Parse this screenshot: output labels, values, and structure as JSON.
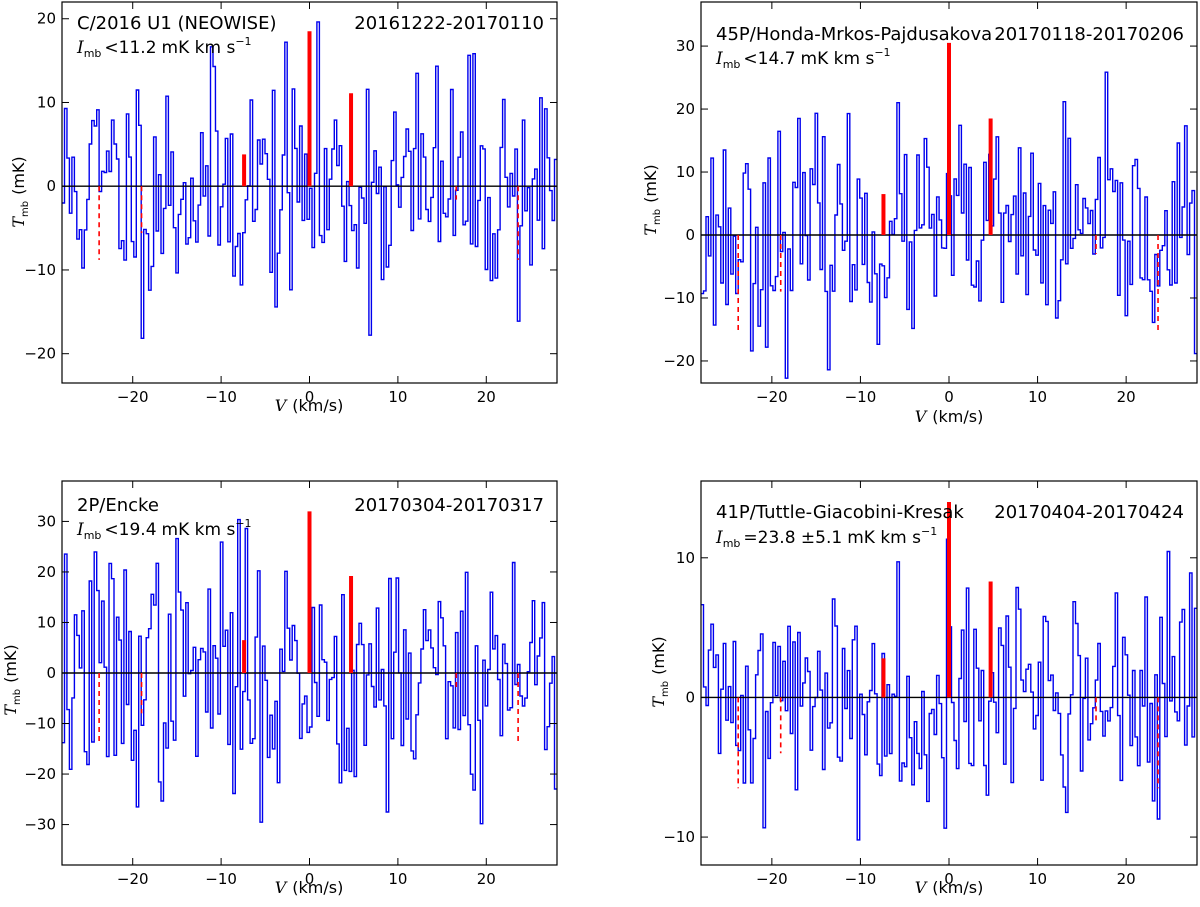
{
  "chart_data": [
    {
      "type": "line",
      "subtype": "histogram-step spectrum",
      "comet": "C/2016 U1 (NEOWISE)",
      "date_range": "20161222-20170110",
      "intensity": {
        "symbol": "I",
        "subscript": "mb",
        "relation": "<",
        "value": "11.2",
        "unit": "mK km s",
        "unit_exp": "−1"
      },
      "xlabel": {
        "symbol": "V",
        "unit": "(km/s)"
      },
      "ylabel": {
        "symbol": "T",
        "subscript": "mb",
        "unit": "(mK)"
      },
      "xlim": [
        -28,
        28
      ],
      "ylim": [
        -23.5,
        22
      ],
      "xticks": [
        -20,
        -10,
        0,
        10,
        20
      ],
      "xtick_labels": [
        "−20",
        "−10",
        "0",
        "10",
        "20"
      ],
      "yticks": [
        -20,
        -10,
        0,
        10,
        20
      ],
      "ytick_labels": [
        "−20",
        "−10",
        "0",
        "10",
        "20"
      ],
      "line_markers": [
        {
          "v": -7.4,
          "h": 3.8
        },
        {
          "v": 0.0,
          "h": 18.5
        },
        {
          "v": 4.7,
          "h": 11.1
        }
      ],
      "dashed_markers": [
        {
          "v": -23.8,
          "h": -8.8
        },
        {
          "v": -19.0,
          "h": -5.6
        },
        {
          "v": 16.6,
          "h": -1.6
        },
        {
          "v": 23.6,
          "h": -8.8
        }
      ],
      "seed": 11,
      "noise_rms": 7.2
    },
    {
      "type": "line",
      "subtype": "histogram-step spectrum",
      "comet": "45P/Honda-Mrkos-Pajdusakova",
      "date_range": "20170118-20170206",
      "intensity": {
        "symbol": "I",
        "subscript": "mb",
        "relation": "<",
        "value": "14.7",
        "unit": "mK km s",
        "unit_exp": "−1"
      },
      "xlabel": {
        "symbol": "V",
        "unit": "(km/s)"
      },
      "ylabel": {
        "symbol": "T",
        "subscript": "mb",
        "unit": "(mK)"
      },
      "xlim": [
        -28,
        28
      ],
      "ylim": [
        -23.5,
        37
      ],
      "xticks": [
        -20,
        -10,
        0,
        10,
        20
      ],
      "xtick_labels": [
        "−20",
        "−10",
        "0",
        "10",
        "20"
      ],
      "yticks": [
        -20,
        -10,
        0,
        10,
        20,
        30
      ],
      "ytick_labels": [
        "−20",
        "−10",
        "0",
        "10",
        "20",
        "30"
      ],
      "line_markers": [
        {
          "v": -7.4,
          "h": 6.5
        },
        {
          "v": 0.0,
          "h": 30.5
        },
        {
          "v": 4.7,
          "h": 18.5
        }
      ],
      "dashed_markers": [
        {
          "v": -23.8,
          "h": -15.5
        },
        {
          "v": -19.0,
          "h": -9.0
        },
        {
          "v": 16.6,
          "h": -3.0
        },
        {
          "v": 23.6,
          "h": -15.5
        }
      ],
      "seed": 23,
      "noise_rms": 8.4
    },
    {
      "type": "line",
      "subtype": "histogram-step spectrum",
      "comet": "2P/Encke",
      "date_range": "20170304-20170317",
      "intensity": {
        "symbol": "I",
        "subscript": "mb",
        "relation": "<",
        "value": "19.4",
        "unit": "mK km s",
        "unit_exp": "−1"
      },
      "xlabel": {
        "symbol": "V",
        "unit": "(km/s)"
      },
      "ylabel": {
        "symbol": "T",
        "subscript": "mb",
        "unit": "(mK)"
      },
      "xlim": [
        -28,
        28
      ],
      "ylim": [
        -38,
        38
      ],
      "xticks": [
        -20,
        -10,
        0,
        10,
        20
      ],
      "xtick_labels": [
        "−20",
        "−10",
        "0",
        "10",
        "20"
      ],
      "yticks": [
        -30,
        -20,
        -10,
        0,
        10,
        20,
        30
      ],
      "ytick_labels": [
        "−30",
        "−20",
        "−10",
        "0",
        "10",
        "20",
        "30"
      ],
      "line_markers": [
        {
          "v": -7.4,
          "h": 6.5
        },
        {
          "v": 0.0,
          "h": 32.0
        },
        {
          "v": 4.7,
          "h": 19.2
        }
      ],
      "dashed_markers": [
        {
          "v": -23.8,
          "h": -13.5
        },
        {
          "v": -19.0,
          "h": -8.0
        },
        {
          "v": 16.6,
          "h": -3.0
        },
        {
          "v": 23.6,
          "h": -13.5
        }
      ],
      "seed": 37,
      "noise_rms": 12.5
    },
    {
      "type": "line",
      "subtype": "histogram-step spectrum",
      "comet": "41P/Tuttle-Giacobini-Kresak",
      "date_range": "20170404-20170424",
      "intensity": {
        "symbol": "I",
        "subscript": "mb",
        "relation": "=",
        "value": "23.8 ±5.1",
        "unit": "mK km s",
        "unit_exp": "−1"
      },
      "xlabel": {
        "symbol": "V",
        "unit": "(km/s)"
      },
      "ylabel": {
        "symbol": "T",
        "subscript": "mb",
        "unit": "(mK)"
      },
      "xlim": [
        -28,
        28
      ],
      "ylim": [
        -12,
        15.5
      ],
      "xticks": [
        -20,
        -10,
        0,
        10,
        20
      ],
      "xtick_labels": [
        "−20",
        "−10",
        "0",
        "10",
        "20"
      ],
      "yticks": [
        -10,
        0,
        10
      ],
      "ytick_labels": [
        "−10",
        "0",
        "10"
      ],
      "line_markers": [
        {
          "v": -7.4,
          "h": 2.8
        },
        {
          "v": 0.0,
          "h": 14.0
        },
        {
          "v": 4.7,
          "h": 8.3
        }
      ],
      "dashed_markers": [
        {
          "v": -23.8,
          "h": -6.5
        },
        {
          "v": -19.0,
          "h": -4.0
        },
        {
          "v": 16.6,
          "h": -1.8
        },
        {
          "v": 23.6,
          "h": -6.5
        }
      ],
      "seed": 41,
      "noise_rms": 4.0
    }
  ]
}
